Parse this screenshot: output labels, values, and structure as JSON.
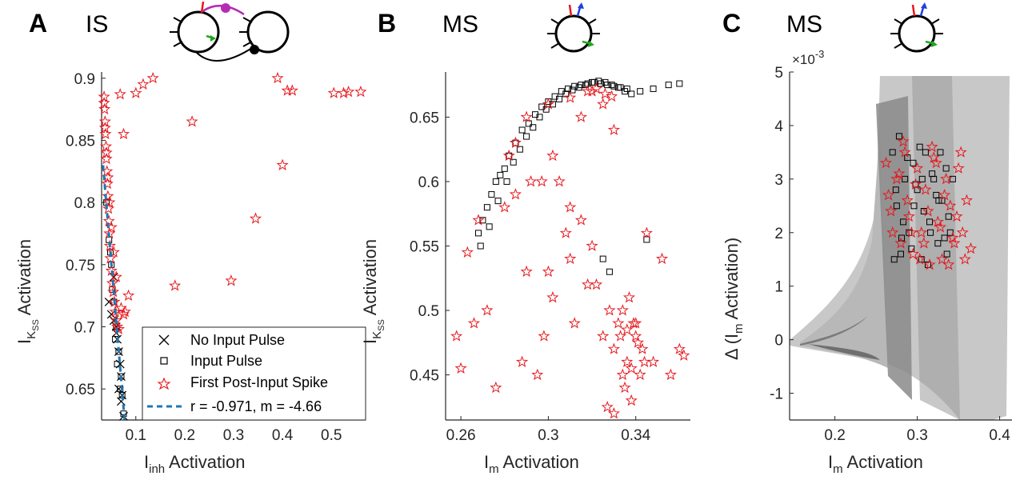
{
  "panels": [
    {
      "label": "A",
      "title": "IS",
      "xlabel": {
        "main": "I",
        "sub": "inh",
        "rest": " Activation"
      },
      "ylabel": {
        "main": "I",
        "sub": "K",
        "subsub": "SS",
        "rest": " Activation"
      },
      "xticks": [
        "0.1",
        "0.2",
        "0.3",
        "0.4",
        "0.5"
      ],
      "yticks": [
        "0.65",
        "0.7",
        "0.75",
        "0.8",
        "0.85",
        "0.9"
      ]
    },
    {
      "label": "B",
      "title": "MS",
      "xlabel": {
        "main": "I",
        "sub": "m",
        "rest": " Activation"
      },
      "ylabel": {
        "main": "I",
        "sub": "K",
        "subsub": "SS",
        "rest": " Activation"
      },
      "xticks": [
        "0.26",
        "0.3",
        "0.34"
      ],
      "yticks": [
        "0.45",
        "0.5",
        "0.55",
        "0.6",
        "0.65"
      ]
    },
    {
      "label": "C",
      "title": "MS",
      "xlabel": {
        "main": "I",
        "sub": "m",
        "rest": " Activation"
      },
      "ylabel": {
        "pre": "Δ (I",
        "sub": "m",
        "rest": " Activation)"
      },
      "xticks": [
        "0.2",
        "0.3",
        "0.4"
      ],
      "yticks": [
        "-1",
        "0",
        "1",
        "2",
        "3",
        "4",
        "5"
      ],
      "exponent": {
        "base": "×10",
        "power": "-3"
      }
    }
  ],
  "legend": {
    "items": [
      "No Input Pulse",
      "Input Pulse",
      "First Post-Input Spike",
      "r = -0.971, m = -4.66"
    ]
  },
  "colors": {
    "no_input": "#000000",
    "input": "#000000",
    "spike": "#e8171c",
    "fit": "#1f77b4",
    "trace_light": "#c8c8c8",
    "trace_dark": "#8a8a8a",
    "inhibitory": "#b52bb5",
    "excitatory": "#1fa81f",
    "input_arrow": "#e8171c",
    "output_arrow": "#1f3fe0"
  },
  "chart_data": [
    {
      "type": "scatter",
      "panel": "A",
      "xlim": [
        0.03,
        0.57
      ],
      "ylim": [
        0.625,
        0.905
      ],
      "series": [
        {
          "name": "No Input Pulse",
          "marker": "x",
          "x": [
            0.045,
            0.05,
            0.055,
            0.06,
            0.062,
            0.065,
            0.068,
            0.07,
            0.072,
            0.075,
            0.065,
            0.07,
            0.06,
            0.055
          ],
          "y": [
            0.72,
            0.71,
            0.705,
            0.7,
            0.69,
            0.68,
            0.67,
            0.66,
            0.645,
            0.628,
            0.65,
            0.64,
            0.695,
            0.74
          ]
        },
        {
          "name": "Input Pulse",
          "marker": "square",
          "x": [
            0.04,
            0.045,
            0.05,
            0.055,
            0.06,
            0.065,
            0.07,
            0.072,
            0.075,
            0.068,
            0.062,
            0.058,
            0.052,
            0.048
          ],
          "y": [
            0.8,
            0.77,
            0.75,
            0.72,
            0.7,
            0.68,
            0.66,
            0.645,
            0.63,
            0.65,
            0.67,
            0.69,
            0.73,
            0.76
          ]
        },
        {
          "name": "First Post-Input Spike",
          "marker": "star",
          "x": [
            0.035,
            0.036,
            0.037,
            0.038,
            0.039,
            0.04,
            0.041,
            0.042,
            0.043,
            0.044,
            0.045,
            0.046,
            0.047,
            0.048,
            0.05,
            0.052,
            0.054,
            0.056,
            0.058,
            0.06,
            0.062,
            0.065,
            0.035,
            0.037,
            0.04,
            0.043,
            0.046,
            0.05,
            0.055,
            0.06,
            0.07,
            0.075,
            0.078,
            0.085,
            0.1,
            0.115,
            0.135,
            0.068,
            0.075,
            0.18,
            0.215,
            0.295,
            0.345,
            0.39,
            0.4,
            0.41,
            0.42,
            0.505,
            0.525,
            0.535,
            0.56
          ],
          "y": [
            0.885,
            0.875,
            0.865,
            0.855,
            0.845,
            0.835,
            0.825,
            0.815,
            0.805,
            0.795,
            0.785,
            0.775,
            0.765,
            0.755,
            0.745,
            0.735,
            0.728,
            0.72,
            0.712,
            0.705,
            0.7,
            0.698,
            0.88,
            0.86,
            0.84,
            0.82,
            0.8,
            0.78,
            0.76,
            0.74,
            0.715,
            0.71,
            0.712,
            0.725,
            0.888,
            0.895,
            0.9,
            0.887,
            0.855,
            0.733,
            0.865,
            0.737,
            0.787,
            0.9,
            0.83,
            0.89,
            0.89,
            0.888,
            0.888,
            0.889,
            0.889
          ]
        },
        {
          "name": "r = -0.971, m = -4.66",
          "marker": "dashed-line",
          "x": [
            0.033,
            0.077
          ],
          "y": [
            0.83,
            0.625
          ]
        }
      ]
    },
    {
      "type": "scatter",
      "panel": "B",
      "xlim": [
        0.253,
        0.365
      ],
      "ylim": [
        0.415,
        0.685
      ],
      "series": [
        {
          "name": "Input Pulse",
          "marker": "square",
          "x": [
            0.268,
            0.27,
            0.272,
            0.274,
            0.276,
            0.278,
            0.28,
            0.282,
            0.285,
            0.288,
            0.291,
            0.294,
            0.297,
            0.3,
            0.303,
            0.306,
            0.309,
            0.312,
            0.315,
            0.318,
            0.321,
            0.324,
            0.327,
            0.33,
            0.333,
            0.336,
            0.269,
            0.273,
            0.277,
            0.281,
            0.284,
            0.287,
            0.29,
            0.293,
            0.296,
            0.299,
            0.302,
            0.305,
            0.308,
            0.311,
            0.314,
            0.317,
            0.32,
            0.323,
            0.326,
            0.329,
            0.332,
            0.335,
            0.338,
            0.342,
            0.348,
            0.355,
            0.36,
            0.328,
            0.325,
            0.345
          ],
          "y": [
            0.56,
            0.57,
            0.58,
            0.59,
            0.6,
            0.605,
            0.61,
            0.62,
            0.63,
            0.64,
            0.645,
            0.652,
            0.658,
            0.662,
            0.666,
            0.67,
            0.672,
            0.674,
            0.675,
            0.676,
            0.677,
            0.676,
            0.675,
            0.674,
            0.673,
            0.672,
            0.55,
            0.565,
            0.585,
            0.6,
            0.615,
            0.625,
            0.635,
            0.642,
            0.65,
            0.656,
            0.66,
            0.664,
            0.668,
            0.671,
            0.673,
            0.675,
            0.677,
            0.678,
            0.677,
            0.675,
            0.673,
            0.67,
            0.668,
            0.67,
            0.672,
            0.675,
            0.676,
            0.53,
            0.54,
            0.555
          ]
        },
        {
          "name": "First Post-Input Spike",
          "marker": "star",
          "x": [
            0.258,
            0.26,
            0.263,
            0.266,
            0.268,
            0.272,
            0.276,
            0.28,
            0.282,
            0.285,
            0.288,
            0.29,
            0.292,
            0.295,
            0.298,
            0.3,
            0.302,
            0.305,
            0.308,
            0.31,
            0.312,
            0.315,
            0.318,
            0.32,
            0.322,
            0.325,
            0.328,
            0.33,
            0.332,
            0.334,
            0.336,
            0.338,
            0.34,
            0.342,
            0.345,
            0.348,
            0.352,
            0.356,
            0.36,
            0.362,
            0.297,
            0.302,
            0.31,
            0.315,
            0.32,
            0.325,
            0.33,
            0.333,
            0.336,
            0.339,
            0.341,
            0.343,
            0.33,
            0.335,
            0.338,
            0.327,
            0.285,
            0.29,
            0.3,
            0.31,
            0.318,
            0.322,
            0.326,
            0.329,
            0.334,
            0.337,
            0.34,
            0.344
          ],
          "y": [
            0.48,
            0.455,
            0.545,
            0.49,
            0.57,
            0.5,
            0.44,
            0.58,
            0.62,
            0.59,
            0.46,
            0.53,
            0.6,
            0.45,
            0.48,
            0.53,
            0.51,
            0.6,
            0.56,
            0.54,
            0.49,
            0.57,
            0.52,
            0.55,
            0.52,
            0.48,
            0.5,
            0.47,
            0.49,
            0.45,
            0.46,
            0.43,
            0.48,
            0.45,
            0.56,
            0.46,
            0.54,
            0.45,
            0.47,
            0.465,
            0.6,
            0.62,
            0.58,
            0.65,
            0.67,
            0.66,
            0.64,
            0.48,
            0.485,
            0.49,
            0.475,
            0.47,
            0.42,
            0.44,
            0.455,
            0.425,
            0.63,
            0.65,
            0.66,
            0.665,
            0.67,
            0.672,
            0.668,
            0.666,
            0.5,
            0.51,
            0.49,
            0.46
          ]
        }
      ]
    },
    {
      "type": "scatter",
      "panel": "C",
      "xlim": [
        0.145,
        0.415
      ],
      "ylim": [
        -1.5,
        5.0
      ],
      "y_exponent": -3,
      "series": [
        {
          "name": "Input Pulse",
          "marker": "square",
          "x": [
            0.27,
            0.275,
            0.28,
            0.285,
            0.29,
            0.295,
            0.3,
            0.305,
            0.31,
            0.315,
            0.32,
            0.325,
            0.33,
            0.335,
            0.34,
            0.272,
            0.278,
            0.283,
            0.288,
            0.293,
            0.298,
            0.303,
            0.308,
            0.313,
            0.318,
            0.323,
            0.328,
            0.333,
            0.338,
            0.343,
            0.274,
            0.281,
            0.296,
            0.306,
            0.316,
            0.326,
            0.336
          ],
          "y": [
            3.5,
            2.5,
            1.6,
            3.0,
            2.0,
            3.3,
            2.8,
            1.5,
            3.5,
            2.2,
            3.0,
            1.8,
            2.6,
            3.2,
            2.0,
            1.5,
            3.8,
            2.2,
            3.4,
            1.7,
            2.9,
            3.6,
            2.4,
            1.4,
            3.1,
            2.7,
            3.5,
            1.9,
            2.3,
            3.0,
            2.8,
            1.9,
            2.5,
            3.0,
            2.0,
            2.6,
            1.6
          ]
        },
        {
          "name": "First Post-Input Spike",
          "marker": "star",
          "x": [
            0.262,
            0.265,
            0.27,
            0.275,
            0.28,
            0.285,
            0.29,
            0.295,
            0.3,
            0.305,
            0.31,
            0.315,
            0.32,
            0.325,
            0.33,
            0.335,
            0.34,
            0.345,
            0.35,
            0.355,
            0.36,
            0.365,
            0.268,
            0.278,
            0.288,
            0.298,
            0.308,
            0.318,
            0.328,
            0.338,
            0.348,
            0.358,
            0.283,
            0.293,
            0.303,
            0.313,
            0.323,
            0.333,
            0.343,
            0.353
          ],
          "y": [
            3.3,
            2.7,
            2.0,
            3.0,
            1.8,
            3.5,
            2.3,
            1.6,
            3.2,
            2.0,
            2.8,
            1.4,
            3.4,
            2.2,
            1.5,
            3.0,
            2.5,
            1.8,
            3.2,
            2.0,
            2.6,
            1.7,
            2.4,
            3.1,
            2.6,
            2.9,
            1.8,
            3.6,
            2.1,
            1.4,
            2.3,
            1.5,
            3.7,
            2.0,
            1.5,
            2.4,
            3.3,
            2.7,
            1.9,
            3.5
          ]
        }
      ]
    }
  ]
}
